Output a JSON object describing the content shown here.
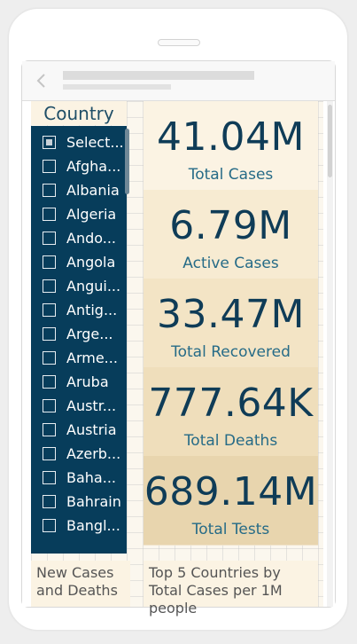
{
  "slicer": {
    "title": "Country",
    "items": [
      {
        "label": "Select...",
        "state": "partial"
      },
      {
        "label": "Afgha..."
      },
      {
        "label": "Albania"
      },
      {
        "label": "Algeria"
      },
      {
        "label": "Ando..."
      },
      {
        "label": "Angola"
      },
      {
        "label": "Angui..."
      },
      {
        "label": "Antig..."
      },
      {
        "label": "Arge..."
      },
      {
        "label": "Arme..."
      },
      {
        "label": "Aruba"
      },
      {
        "label": "Austr..."
      },
      {
        "label": "Austria"
      },
      {
        "label": "Azerb..."
      },
      {
        "label": "Baha..."
      },
      {
        "label": "Bahrain"
      },
      {
        "label": "Bangl..."
      }
    ]
  },
  "kpis": [
    {
      "value": "41.04M",
      "label": "Total Cases",
      "color": "#fbf3e3"
    },
    {
      "value": "6.79M",
      "label": "Active Cases",
      "color": "#f7ebd2"
    },
    {
      "value": "33.47M",
      "label": "Total Recovered",
      "color": "#f3e4c5"
    },
    {
      "value": "777.64K",
      "label": "Total Deaths",
      "color": "#efdebb"
    },
    {
      "value": "689.14M",
      "label": "Total Tests",
      "color": "#e8d5ae"
    }
  ],
  "bottom": {
    "left_title": "New Cases and Deaths",
    "right_title": "Top 5 Countries by Total Cases per 1M people"
  },
  "theme": {
    "slicer_bg": "#073d5b",
    "kpi_value_color": "#0f3c57",
    "kpi_label_color": "#266b87"
  }
}
